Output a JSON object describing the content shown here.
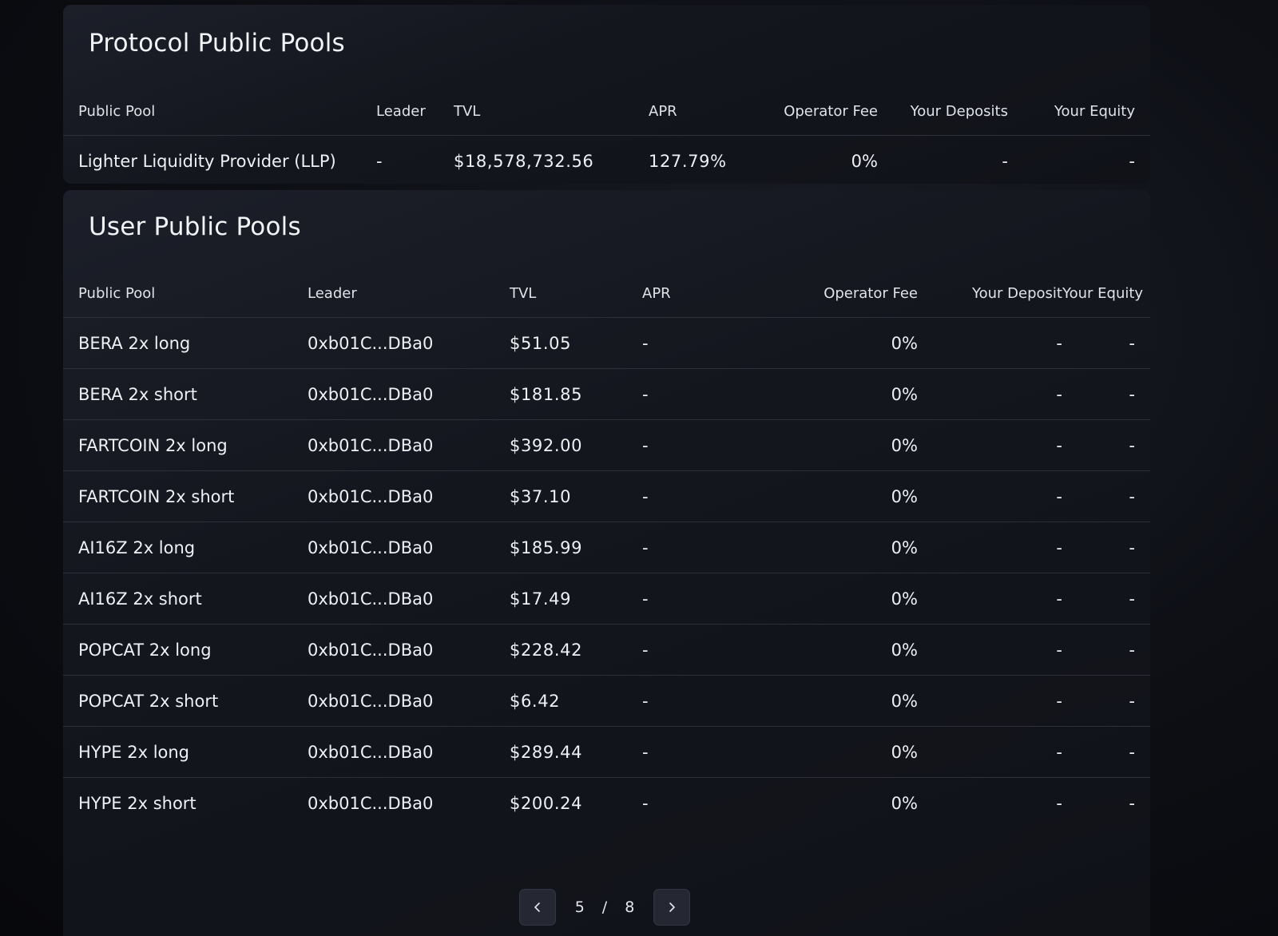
{
  "protocol": {
    "title": "Protocol Public Pools",
    "columns": [
      "Public Pool",
      "Leader",
      "TVL",
      "APR",
      "Operator Fee",
      "Your Deposits",
      "Your Equity"
    ],
    "rows": [
      {
        "pool": "Lighter Liquidity Provider (LLP)",
        "leader": "-",
        "tvl": "$18,578,732.56",
        "apr": "127.79%",
        "fee": "0%",
        "deposit": "-",
        "equity": "-"
      }
    ]
  },
  "user": {
    "title": "User Public Pools",
    "columns": [
      "Public Pool",
      "Leader",
      "TVL",
      "APR",
      "Operator Fee",
      "Your Deposit",
      "Your Equity"
    ],
    "rows": [
      {
        "pool": "BERA 2x long",
        "leader": "0xb01C...DBa0",
        "tvl": "$51.05",
        "apr": "-",
        "fee": "0%",
        "deposit": "-",
        "equity": "-"
      },
      {
        "pool": "BERA 2x short",
        "leader": "0xb01C...DBa0",
        "tvl": "$181.85",
        "apr": "-",
        "fee": "0%",
        "deposit": "-",
        "equity": "-"
      },
      {
        "pool": "FARTCOIN 2x long",
        "leader": "0xb01C...DBa0",
        "tvl": "$392.00",
        "apr": "-",
        "fee": "0%",
        "deposit": "-",
        "equity": "-"
      },
      {
        "pool": "FARTCOIN 2x short",
        "leader": "0xb01C...DBa0",
        "tvl": "$37.10",
        "apr": "-",
        "fee": "0%",
        "deposit": "-",
        "equity": "-"
      },
      {
        "pool": "AI16Z 2x long",
        "leader": "0xb01C...DBa0",
        "tvl": "$185.99",
        "apr": "-",
        "fee": "0%",
        "deposit": "-",
        "equity": "-"
      },
      {
        "pool": "AI16Z 2x short",
        "leader": "0xb01C...DBa0",
        "tvl": "$17.49",
        "apr": "-",
        "fee": "0%",
        "deposit": "-",
        "equity": "-"
      },
      {
        "pool": "POPCAT 2x long",
        "leader": "0xb01C...DBa0",
        "tvl": "$228.42",
        "apr": "-",
        "fee": "0%",
        "deposit": "-",
        "equity": "-"
      },
      {
        "pool": "POPCAT 2x short",
        "leader": "0xb01C...DBa0",
        "tvl": "$6.42",
        "apr": "-",
        "fee": "0%",
        "deposit": "-",
        "equity": "-"
      },
      {
        "pool": "HYPE 2x long",
        "leader": "0xb01C...DBa0",
        "tvl": "$289.44",
        "apr": "-",
        "fee": "0%",
        "deposit": "-",
        "equity": "-"
      },
      {
        "pool": "HYPE 2x short",
        "leader": "0xb01C...DBa0",
        "tvl": "$200.24",
        "apr": "-",
        "fee": "0%",
        "deposit": "-",
        "equity": "-"
      }
    ]
  },
  "pagination": {
    "current": "5",
    "separator": "/",
    "total": "8",
    "prev_icon": "chevron-left-icon",
    "next_icon": "chevron-right-icon"
  }
}
